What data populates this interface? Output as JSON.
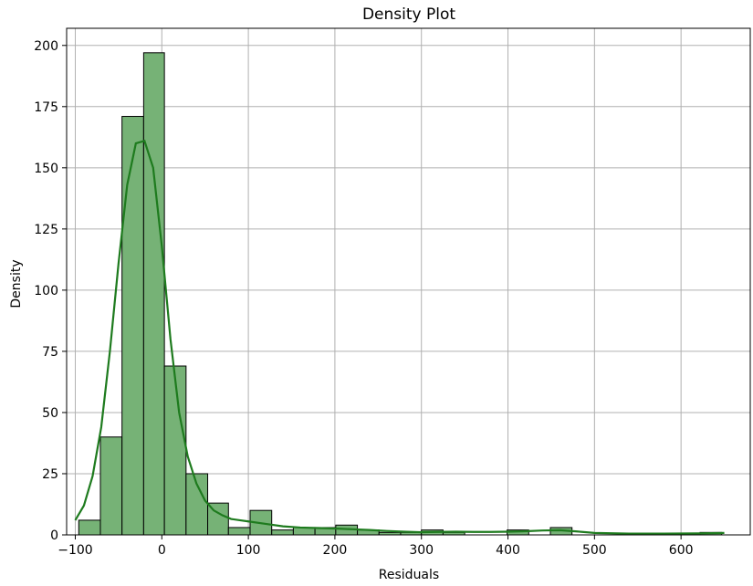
{
  "chart_data": {
    "type": "bar",
    "title": "Density Plot",
    "xlabel": "Residuals",
    "ylabel": "Density",
    "xlim": [
      -110,
      680
    ],
    "ylim": [
      0,
      207
    ],
    "xticks": [
      -100,
      0,
      100,
      200,
      300,
      400,
      500,
      600
    ],
    "xtick_labels": [
      "−100",
      "0",
      "100",
      "200",
      "300",
      "400",
      "500",
      "600"
    ],
    "yticks": [
      0,
      25,
      50,
      75,
      100,
      125,
      150,
      175,
      200
    ],
    "ytick_labels": [
      "0",
      "25",
      "50",
      "75",
      "100",
      "125",
      "150",
      "175",
      "200"
    ],
    "grid": true,
    "bar_color": "#76b276",
    "bar_edge_color": "#000000",
    "kde_color": "#1e7b1e",
    "bins": [
      {
        "x0": -96,
        "x1": -71,
        "count": 6
      },
      {
        "x0": -71,
        "x1": -46,
        "count": 40
      },
      {
        "x0": -46,
        "x1": -21,
        "count": 171
      },
      {
        "x0": -21,
        "x1": 3,
        "count": 197
      },
      {
        "x0": 3,
        "x1": 28,
        "count": 69
      },
      {
        "x0": 28,
        "x1": 53,
        "count": 25
      },
      {
        "x0": 53,
        "x1": 77,
        "count": 13
      },
      {
        "x0": 77,
        "x1": 102,
        "count": 3
      },
      {
        "x0": 102,
        "x1": 127,
        "count": 10
      },
      {
        "x0": 127,
        "x1": 152,
        "count": 2
      },
      {
        "x0": 152,
        "x1": 177,
        "count": 3
      },
      {
        "x0": 177,
        "x1": 201,
        "count": 3
      },
      {
        "x0": 201,
        "x1": 226,
        "count": 4
      },
      {
        "x0": 226,
        "x1": 251,
        "count": 2
      },
      {
        "x0": 251,
        "x1": 276,
        "count": 1
      },
      {
        "x0": 276,
        "x1": 300,
        "count": 1
      },
      {
        "x0": 300,
        "x1": 325,
        "count": 2
      },
      {
        "x0": 325,
        "x1": 350,
        "count": 1
      },
      {
        "x0": 350,
        "x1": 375,
        "count": 0
      },
      {
        "x0": 375,
        "x1": 399,
        "count": 0
      },
      {
        "x0": 399,
        "x1": 424,
        "count": 2
      },
      {
        "x0": 424,
        "x1": 449,
        "count": 0
      },
      {
        "x0": 449,
        "x1": 474,
        "count": 3
      },
      {
        "x0": 474,
        "x1": 498,
        "count": 0
      },
      {
        "x0": 498,
        "x1": 523,
        "count": 0
      },
      {
        "x0": 523,
        "x1": 548,
        "count": 0
      },
      {
        "x0": 548,
        "x1": 573,
        "count": 0
      },
      {
        "x0": 573,
        "x1": 597,
        "count": 0
      },
      {
        "x0": 597,
        "x1": 622,
        "count": 0
      },
      {
        "x0": 622,
        "x1": 647,
        "count": 1
      }
    ],
    "kde": {
      "x": [
        -100,
        -90,
        -80,
        -70,
        -60,
        -50,
        -40,
        -30,
        -20,
        -10,
        0,
        10,
        20,
        30,
        40,
        50,
        60,
        70,
        80,
        90,
        100,
        120,
        140,
        160,
        180,
        200,
        220,
        240,
        260,
        280,
        300,
        320,
        340,
        360,
        380,
        400,
        420,
        440,
        460,
        480,
        500,
        540,
        580,
        620,
        650
      ],
      "y": [
        6,
        12,
        24,
        44,
        75,
        111,
        143,
        160,
        161,
        150,
        118,
        80,
        50,
        32,
        21,
        14,
        10,
        8,
        6.5,
        6,
        5.5,
        4.5,
        3.5,
        3,
        2.8,
        2.6,
        2.3,
        2,
        1.6,
        1.3,
        1.1,
        1.2,
        1.3,
        1.2,
        1.2,
        1.3,
        1.5,
        1.8,
        1.9,
        1.4,
        0.8,
        0.5,
        0.5,
        0.6,
        0.8
      ]
    }
  }
}
